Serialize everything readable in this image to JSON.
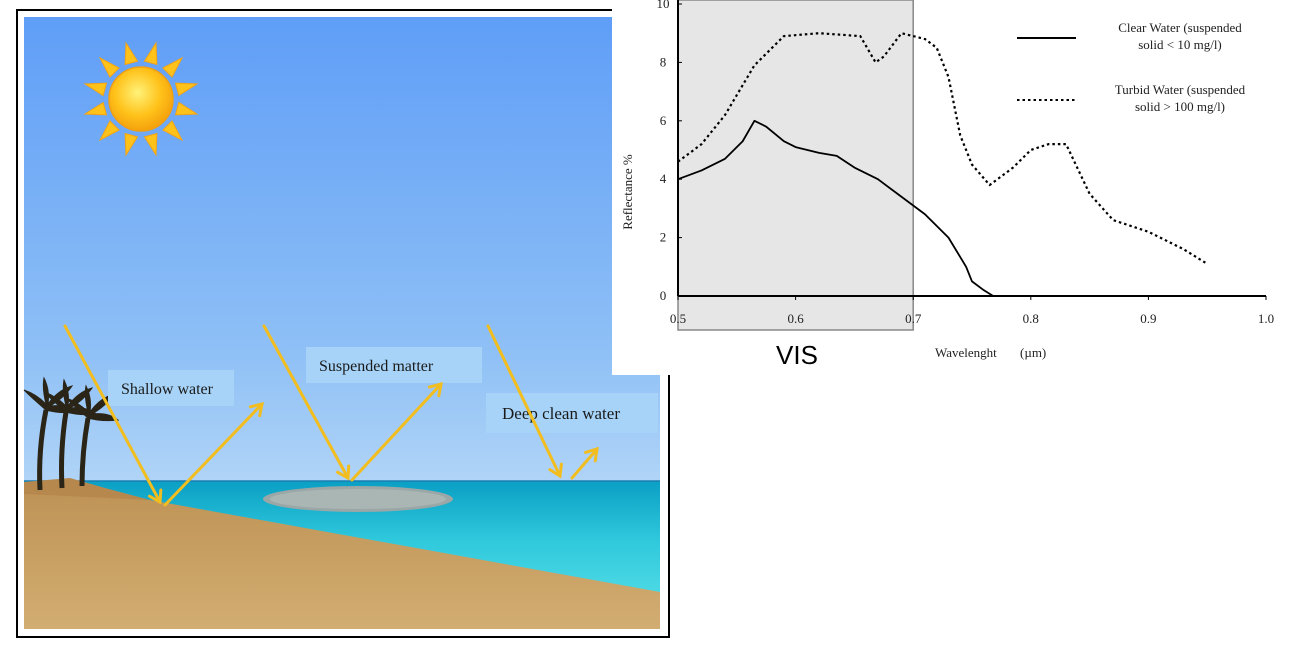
{
  "diagram": {
    "labels": {
      "shallow": "Shallow water",
      "suspended": "Suspended matter",
      "deep": "Deep clean  water"
    },
    "colors": {
      "sky_top": "#5f9ef7",
      "sky_bottom": "#cfe6f8",
      "sea": "#33c9dc",
      "sand": "#c9a46a",
      "arrow": "#f2bd1f",
      "label_box": "#a6d3f7",
      "sun": "#ffc21a"
    }
  },
  "chart_data": {
    "type": "line",
    "ylabel": "Reflectance %",
    "xlabel": "Wavelenght",
    "xunit": "(µm)",
    "xlim": [
      0.5,
      1.0
    ],
    "ylim": [
      0,
      10
    ],
    "xticks": [
      "0.5",
      "0.6",
      "0.7",
      "0.8",
      "0.9",
      "1.0"
    ],
    "yticks": [
      "0",
      "2",
      "4",
      "6",
      "8",
      "10"
    ],
    "region": {
      "label": "VIS",
      "x": [
        0.5,
        0.7
      ]
    },
    "series": [
      {
        "name": "Clear Water (suspended solid < 10 mg/l)",
        "legend_lines": [
          "Clear Water (suspended",
          "solid < 10 mg/l)"
        ],
        "style": "solid",
        "x": [
          0.5,
          0.52,
          0.54,
          0.555,
          0.565,
          0.575,
          0.59,
          0.6,
          0.62,
          0.635,
          0.65,
          0.67,
          0.69,
          0.71,
          0.73,
          0.745,
          0.75,
          0.76,
          0.768
        ],
        "y": [
          4.0,
          4.3,
          4.7,
          5.3,
          6.0,
          5.8,
          5.3,
          5.1,
          4.9,
          4.8,
          4.4,
          4.0,
          3.4,
          2.8,
          2.0,
          1.0,
          0.5,
          0.2,
          0.0
        ]
      },
      {
        "name": "Turbid Water (suspended solid > 100 mg/l)",
        "legend_lines": [
          "Turbid Water (suspended",
          "solid > 100 mg/l)"
        ],
        "style": "dotted",
        "x": [
          0.5,
          0.52,
          0.54,
          0.565,
          0.59,
          0.62,
          0.655,
          0.668,
          0.675,
          0.69,
          0.7,
          0.71,
          0.72,
          0.73,
          0.74,
          0.75,
          0.765,
          0.775,
          0.785,
          0.8,
          0.815,
          0.83,
          0.85,
          0.87,
          0.9,
          0.93,
          0.95
        ],
        "y": [
          4.6,
          5.2,
          6.2,
          7.9,
          8.9,
          9.0,
          8.9,
          8.0,
          8.2,
          9.0,
          8.9,
          8.8,
          8.5,
          7.5,
          5.5,
          4.5,
          3.8,
          4.1,
          4.4,
          5.0,
          5.2,
          5.2,
          3.5,
          2.6,
          2.2,
          1.6,
          1.1
        ]
      }
    ]
  }
}
